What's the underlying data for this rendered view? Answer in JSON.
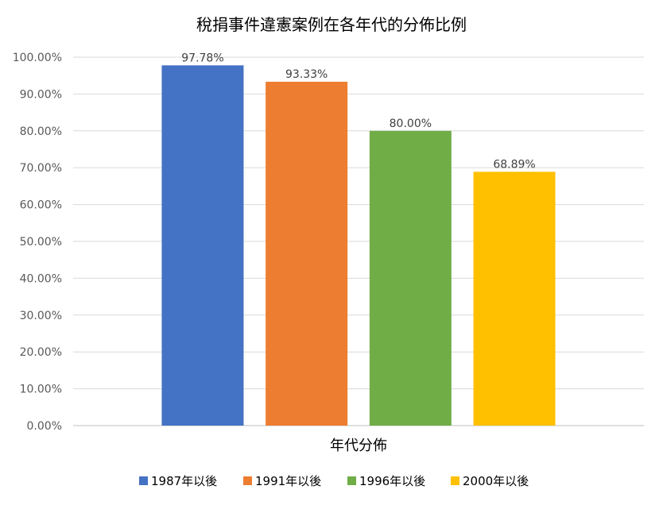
{
  "chart_data": {
    "type": "bar",
    "title": "稅捐事件違憲案例在各年代的分佈比例",
    "xlabel": "年代分佈",
    "ylabel": "",
    "ylim": [
      0,
      100
    ],
    "yticks": [
      "0.00%",
      "10.00%",
      "20.00%",
      "30.00%",
      "40.00%",
      "50.00%",
      "60.00%",
      "70.00%",
      "80.00%",
      "90.00%",
      "100.00%"
    ],
    "grid": true,
    "legend_position": "bottom",
    "categories": [
      "年代分佈"
    ],
    "series": [
      {
        "name": "1987年以後",
        "values": [
          97.78
        ],
        "label": "97.78%",
        "color": "#4472C4"
      },
      {
        "name": "1991年以後",
        "values": [
          93.33
        ],
        "label": "93.33%",
        "color": "#ED7D31"
      },
      {
        "name": "1996年以後",
        "values": [
          80.0
        ],
        "label": "80.00%",
        "color": "#70AD47"
      },
      {
        "name": "2000年以後",
        "values": [
          68.89
        ],
        "label": "68.89%",
        "color": "#FFC000"
      }
    ]
  }
}
